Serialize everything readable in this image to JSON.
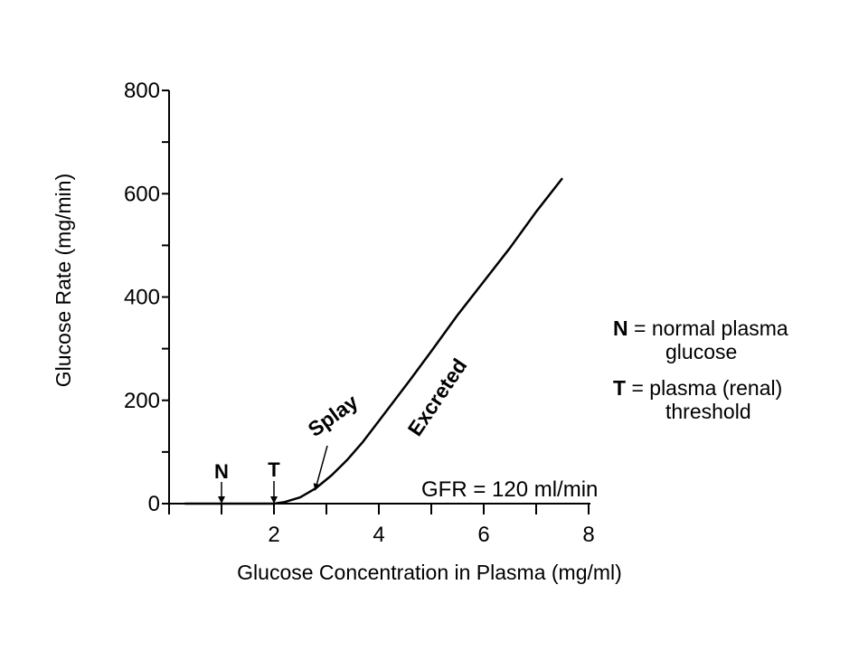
{
  "chart_data": {
    "type": "line",
    "title": "",
    "xlabel": "Glucose Concentration in Plasma (mg/ml)",
    "ylabel": "Glucose Rate (mg/min)",
    "xlim": [
      0,
      8
    ],
    "ylim": [
      0,
      800
    ],
    "x_ticks": [
      0,
      1,
      2,
      3,
      4,
      5,
      6,
      7,
      8
    ],
    "x_tick_labels": [
      "2",
      "4",
      "6",
      "8"
    ],
    "x_tick_label_values": [
      2,
      4,
      6,
      8
    ],
    "y_ticks": [
      0,
      100,
      200,
      300,
      400,
      500,
      600,
      700,
      800
    ],
    "y_tick_labels": [
      "0",
      "200",
      "400",
      "600",
      "800"
    ],
    "y_tick_label_values": [
      0,
      200,
      400,
      600,
      800
    ],
    "grid": false,
    "series": [
      {
        "x": [
          0.3,
          1.0,
          2.0,
          2.2,
          2.5,
          2.8,
          3.1,
          3.4,
          3.7,
          4.0,
          4.3,
          4.6,
          5.0,
          5.5,
          6.0,
          6.5,
          7.0,
          7.5
        ],
        "values": [
          0,
          0,
          0,
          3,
          12,
          30,
          55,
          85,
          120,
          160,
          200,
          240,
          295,
          365,
          430,
          495,
          565,
          630
        ]
      }
    ],
    "annotations": {
      "splay": "Splay",
      "excreted": "Excreted",
      "gfr": "GFR = 120 ml/min",
      "n_marker": "N",
      "n_marker_x": 1,
      "t_marker": "T",
      "t_marker_x": 2,
      "splay_arrow_x": 2.8
    },
    "legend": [
      {
        "key": "N",
        "sep": " = ",
        "line1": "normal plasma",
        "line2": "glucose"
      },
      {
        "key": "T",
        "sep": " = ",
        "line1": "plasma (renal)",
        "line2": "threshold"
      }
    ]
  }
}
